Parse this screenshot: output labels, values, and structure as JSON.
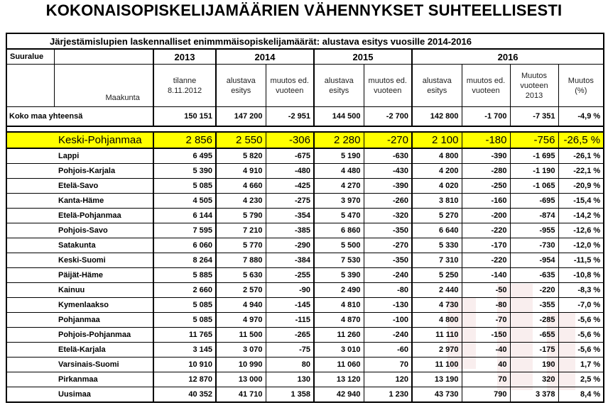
{
  "title": "KOKONAISOPISKELIJAMÄÄRIEN VÄHENNYKSET SUHTEELLISESTI",
  "table_caption": "Järjestämislupien laskennalliset enimmmäisopiskelijamäärät: alustava esitys vuosille 2014-2016",
  "headers": {
    "suuralue": "Suuralue",
    "maakunta": "Maakunta",
    "years": [
      "2013",
      "2014",
      "2015",
      "2016"
    ],
    "sub": {
      "tilanne": "tilanne 8.11.2012",
      "alustava": "alustava esitys",
      "muutos": "muutos ed. vuoteen",
      "muutos2013": "Muutos vuoteen 2013",
      "muutos_pct": "Muutos (%)"
    }
  },
  "total": {
    "name": "Koko maa yhteensä",
    "values": [
      "150 151",
      "147 200",
      "-2 951",
      "144 500",
      "-2 700",
      "142 800",
      "-1 700",
      "-7 351",
      "-4,9 %"
    ]
  },
  "highlight": {
    "name": "Keski-Pohjanmaa",
    "values": [
      "2 856",
      "2 550",
      "-306",
      "2 280",
      "-270",
      "2 100",
      "-180",
      "-756",
      "-26,5 %"
    ]
  },
  "rows": [
    {
      "name": "Lappi",
      "values": [
        "6 495",
        "5 820",
        "-675",
        "5 190",
        "-630",
        "4 800",
        "-390",
        "-1 695",
        "-26,1 %"
      ]
    },
    {
      "name": "Pohjois-Karjala",
      "values": [
        "5 390",
        "4 910",
        "-480",
        "4 480",
        "-430",
        "4 200",
        "-280",
        "-1 190",
        "-22,1 %"
      ]
    },
    {
      "name": "Etelä-Savo",
      "values": [
        "5 085",
        "4 660",
        "-425",
        "4 270",
        "-390",
        "4 020",
        "-250",
        "-1 065",
        "-20,9 %"
      ]
    },
    {
      "name": "Kanta-Häme",
      "values": [
        "4 505",
        "4 230",
        "-275",
        "3 970",
        "-260",
        "3 810",
        "-160",
        "-695",
        "-15,4 %"
      ]
    },
    {
      "name": "Etelä-Pohjanmaa",
      "values": [
        "6 144",
        "5 790",
        "-354",
        "5 470",
        "-320",
        "5 270",
        "-200",
        "-874",
        "-14,2 %"
      ]
    },
    {
      "name": "Pohjois-Savo",
      "values": [
        "7 595",
        "7 210",
        "-385",
        "6 860",
        "-350",
        "6 640",
        "-220",
        "-955",
        "-12,6 %"
      ]
    },
    {
      "name": "Satakunta",
      "values": [
        "6 060",
        "5 770",
        "-290",
        "5 500",
        "-270",
        "5 330",
        "-170",
        "-730",
        "-12,0 %"
      ]
    },
    {
      "name": "Keski-Suomi",
      "values": [
        "8 264",
        "7 880",
        "-384",
        "7 530",
        "-350",
        "7 310",
        "-220",
        "-954",
        "-11,5 %"
      ]
    },
    {
      "name": "Päijät-Häme",
      "values": [
        "5 885",
        "5 630",
        "-255",
        "5 390",
        "-240",
        "5 250",
        "-140",
        "-635",
        "-10,8 %"
      ]
    },
    {
      "name": "Kainuu",
      "values": [
        "2 660",
        "2 570",
        "-90",
        "2 490",
        "-80",
        "2 440",
        "-50",
        "-220",
        "-8,3 %"
      ]
    },
    {
      "name": "Kymenlaakso",
      "values": [
        "5 085",
        "4 940",
        "-145",
        "4 810",
        "-130",
        "4 730",
        "-80",
        "-355",
        "-7,0 %"
      ]
    },
    {
      "name": "Pohjanmaa",
      "values": [
        "5 085",
        "4 970",
        "-115",
        "4 870",
        "-100",
        "4 800",
        "-70",
        "-285",
        "-5,6 %"
      ]
    },
    {
      "name": "Pohjois-Pohjanmaa",
      "values": [
        "11 765",
        "11 500",
        "-265",
        "11 260",
        "-240",
        "11 110",
        "-150",
        "-655",
        "-5,6 %"
      ]
    },
    {
      "name": "Etelä-Karjala",
      "values": [
        "3 145",
        "3 070",
        "-75",
        "3 010",
        "-60",
        "2 970",
        "-40",
        "-175",
        "-5,6 %"
      ]
    },
    {
      "name": "Varsinais-Suomi",
      "values": [
        "10 910",
        "10 990",
        "80",
        "11 060",
        "70",
        "11 100",
        "40",
        "190",
        "1,7 %"
      ]
    },
    {
      "name": "Pirkanmaa",
      "values": [
        "12 870",
        "13 000",
        "130",
        "13 120",
        "120",
        "13 190",
        "70",
        "320",
        "2,5 %"
      ]
    },
    {
      "name": "Uusimaa",
      "values": [
        "40 352",
        "41 710",
        "1 358",
        "42 940",
        "1 230",
        "43 730",
        "790",
        "3 378",
        "8,4 %"
      ]
    }
  ]
}
